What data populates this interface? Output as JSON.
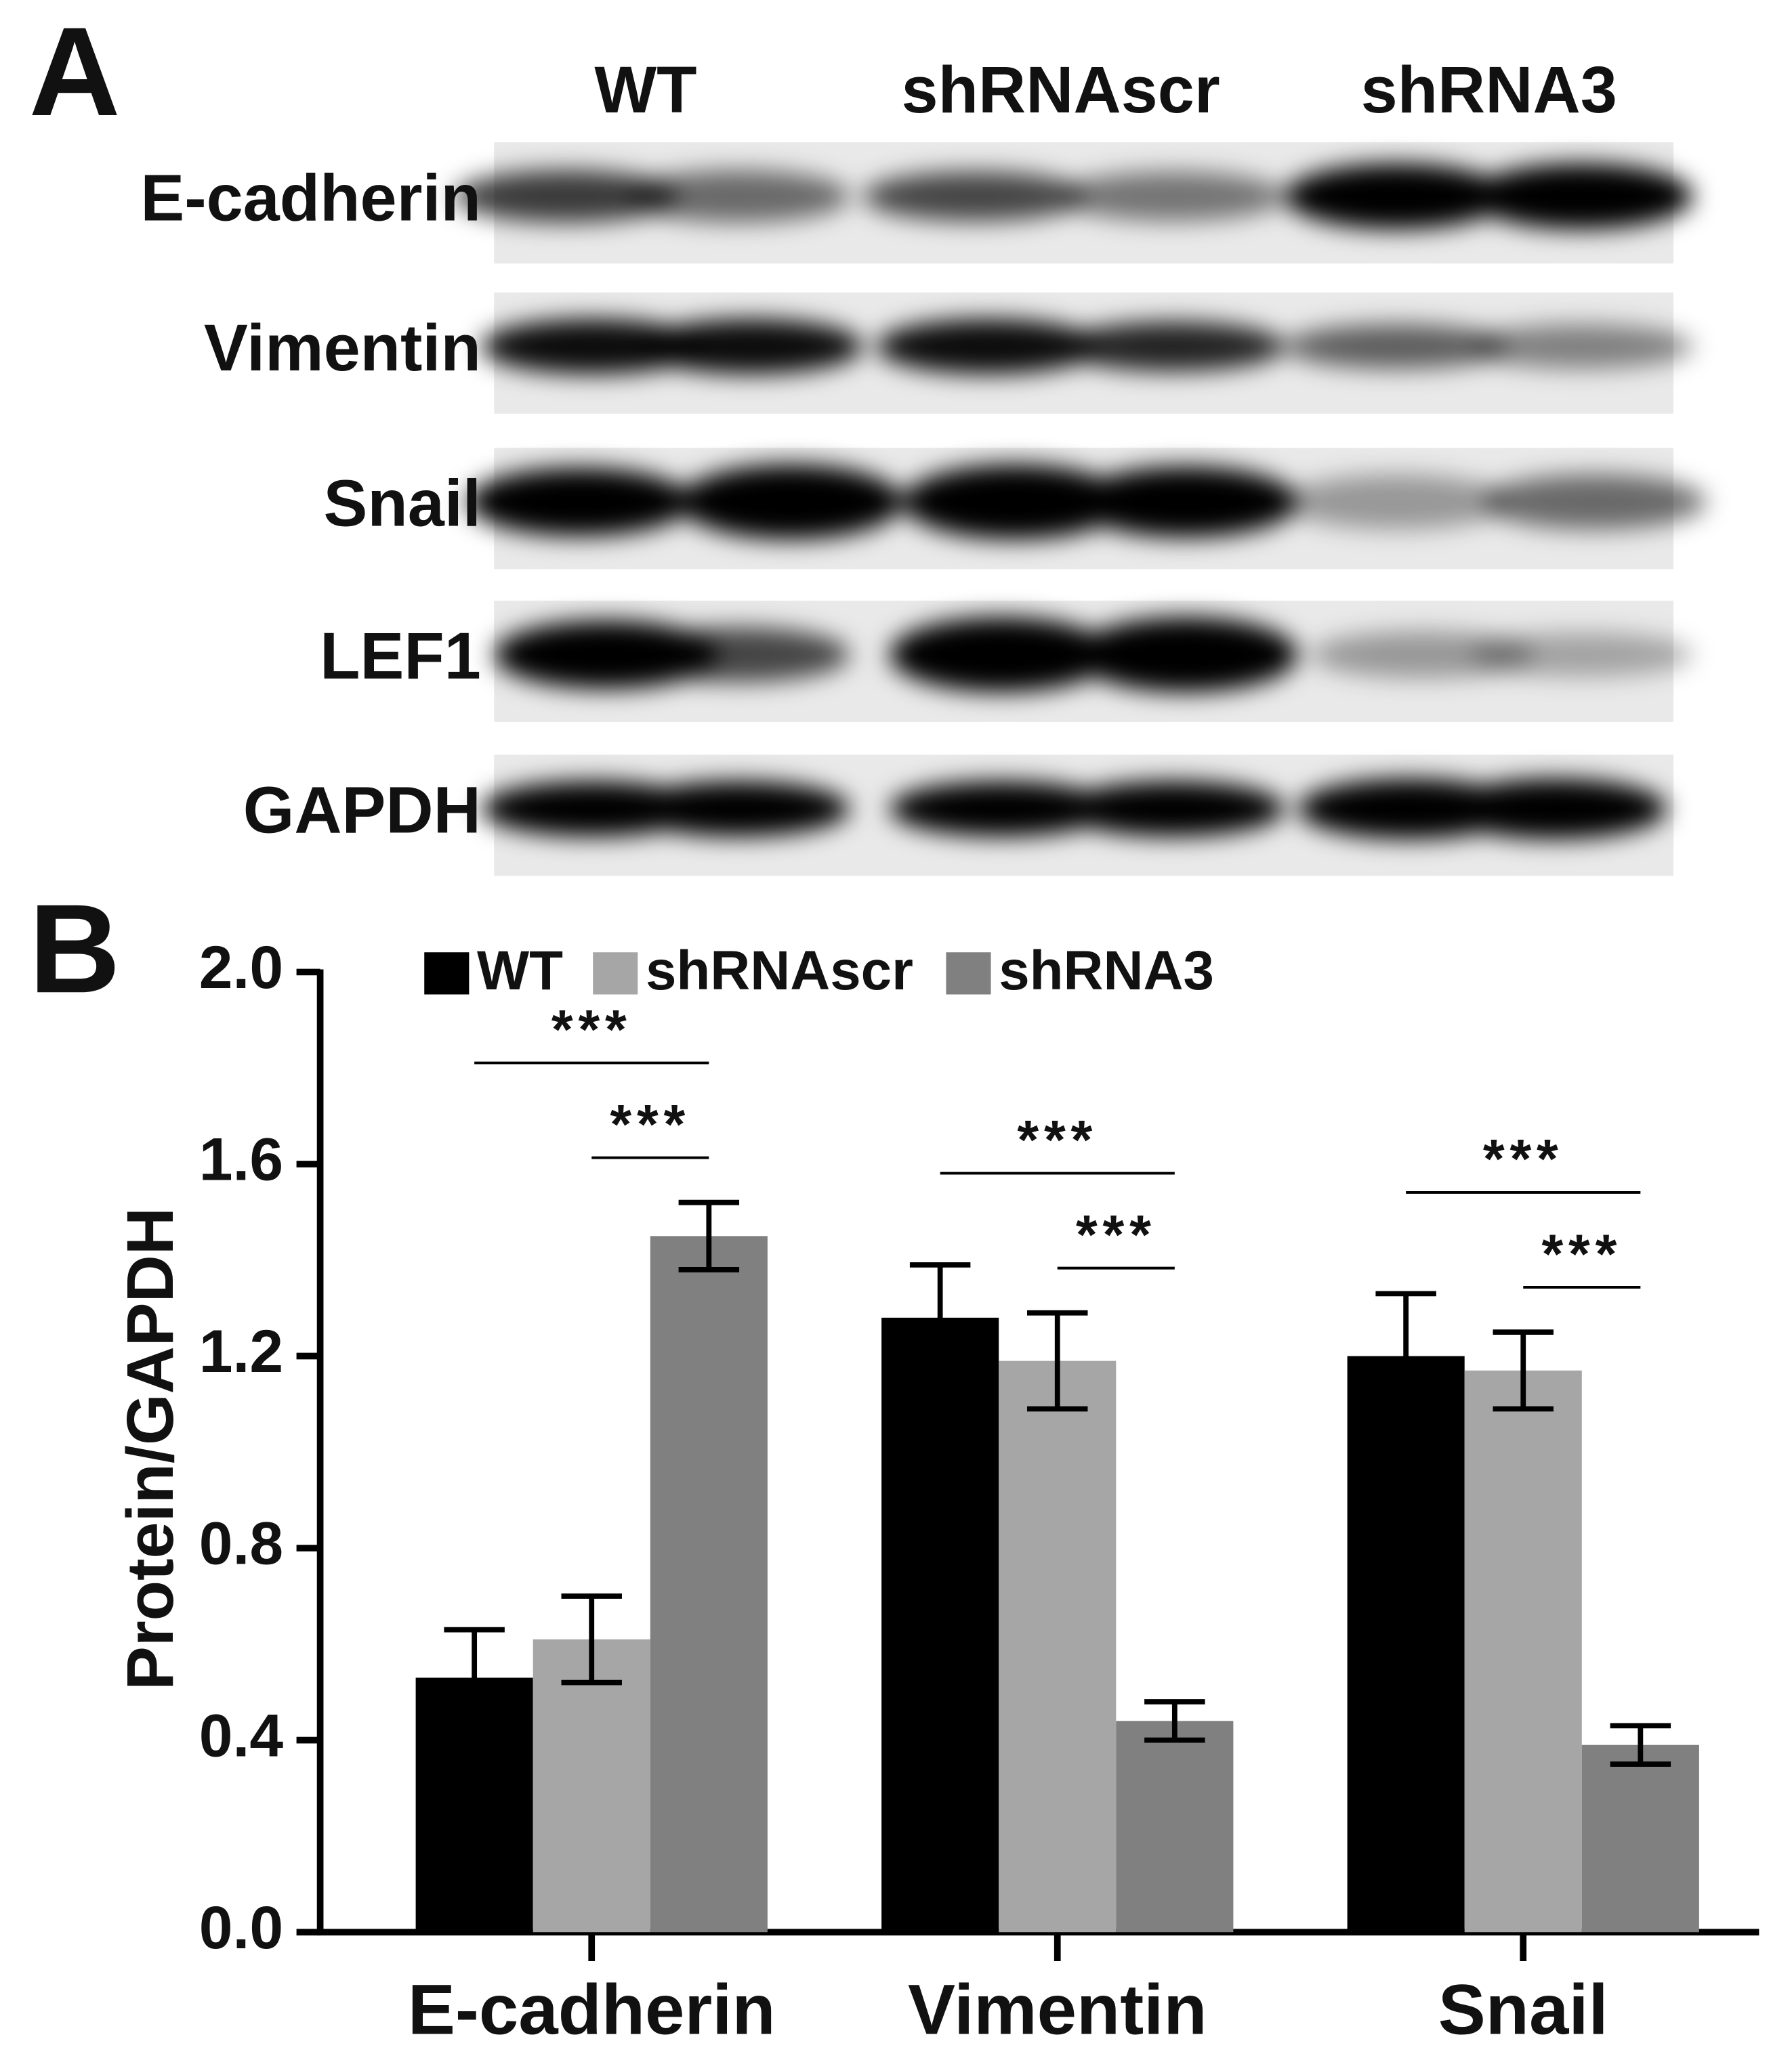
{
  "panel_a": {
    "label": "A",
    "lanes": [
      "WT",
      "shRNAscr",
      "shRNA3"
    ],
    "proteins": [
      "E-cadherin",
      "Vimentin",
      "Snail",
      "LEF1",
      "GAPDH"
    ]
  },
  "chart_data": {
    "type": "bar",
    "panel_label": "B",
    "y_label": "Protein/GAPDH",
    "categories": [
      "E-cadherin",
      "Vimentin",
      "Snail"
    ],
    "series": [
      {
        "name": "WT",
        "color": "#000000",
        "values": [
          0.53,
          1.28,
          1.2
        ],
        "errors": [
          0.1,
          0.11,
          0.13
        ]
      },
      {
        "name": "shRNAscr",
        "color": "#a6a6a6",
        "values": [
          0.61,
          1.19,
          1.17
        ],
        "errors": [
          0.09,
          0.1,
          0.08
        ]
      },
      {
        "name": "shRNA3",
        "color": "#808080",
        "values": [
          1.45,
          0.44,
          0.39
        ],
        "errors": [
          0.07,
          0.04,
          0.04
        ]
      }
    ],
    "annotations": [
      "***",
      "***",
      "***",
      "***",
      "***",
      "***"
    ],
    "ylim": [
      0,
      2
    ],
    "yticks": [
      {
        "value": 0,
        "label": "0.0"
      },
      0.4,
      0.8,
      1.2,
      1.6,
      {
        "value": 2,
        "label": "2.0"
      }
    ],
    "legend": "top"
  }
}
